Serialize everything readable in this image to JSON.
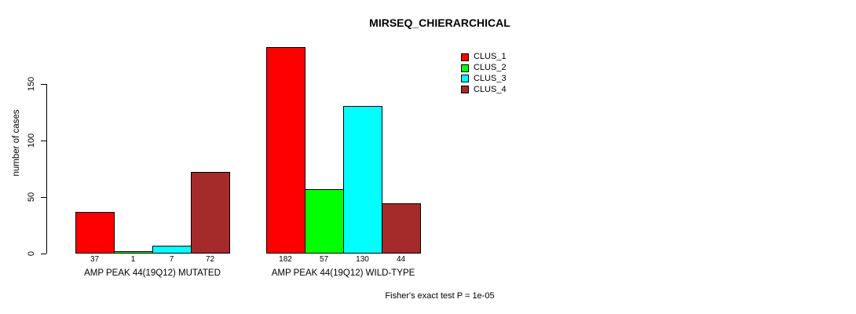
{
  "chart_data": {
    "type": "bar",
    "title": "MIRSEQ_CHIERARCHICAL",
    "ylabel": "number of cases",
    "xlabel": "",
    "categories": [
      "AMP PEAK 44(19Q12) MUTATED",
      "AMP PEAK 44(19Q12) WILD-TYPE"
    ],
    "series": [
      {
        "name": "CLUS_1",
        "color": "#ff0000",
        "values": [
          37,
          182
        ]
      },
      {
        "name": "CLUS_2",
        "color": "#00ff00",
        "values": [
          1,
          57
        ]
      },
      {
        "name": "CLUS_3",
        "color": "#00ffff",
        "values": [
          7,
          130
        ]
      },
      {
        "name": "CLUS_4",
        "color": "#a52a2a",
        "values": [
          72,
          44
        ]
      }
    ],
    "yticks": [
      0,
      50,
      100,
      150
    ],
    "ylim": [
      0,
      190
    ],
    "grid": false,
    "legend_position": "top-right",
    "bar_value_labels_shown": true,
    "annotation": "Fisher's exact test P = 1e-05"
  }
}
